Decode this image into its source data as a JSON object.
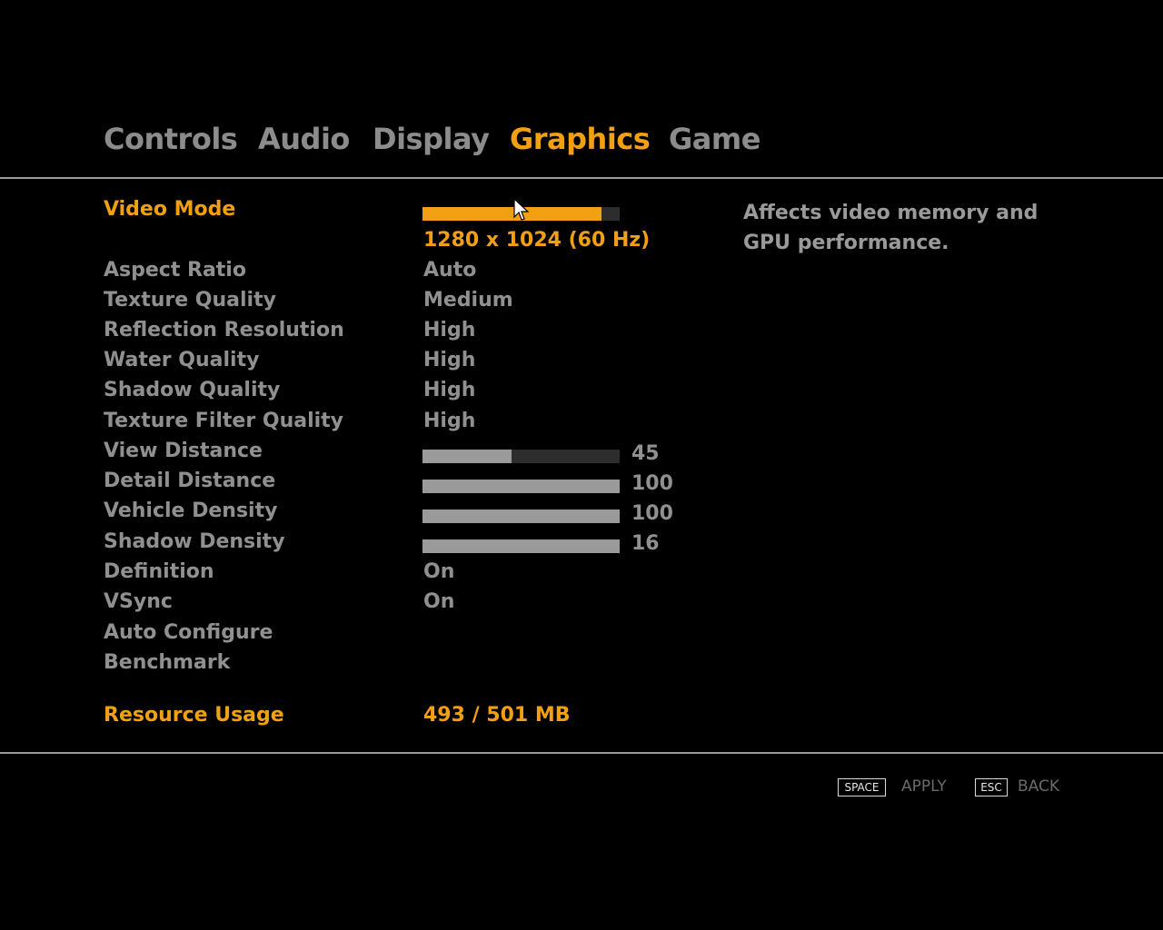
{
  "tabs": [
    {
      "label": "Controls",
      "active": false
    },
    {
      "label": "Audio",
      "active": false
    },
    {
      "label": "Display",
      "active": false
    },
    {
      "label": "Graphics",
      "active": true
    },
    {
      "label": "Game",
      "active": false
    }
  ],
  "settings": {
    "video_mode": {
      "label": "Video Mode",
      "value": "1280 x 1024 (60 Hz)",
      "slider_fraction": 0.91
    },
    "aspect_ratio": {
      "label": "Aspect Ratio",
      "value": "Auto"
    },
    "texture_quality": {
      "label": "Texture Quality",
      "value": "Medium"
    },
    "reflection_resolution": {
      "label": "Reflection Resolution",
      "value": "High"
    },
    "water_quality": {
      "label": "Water Quality",
      "value": "High"
    },
    "shadow_quality": {
      "label": "Shadow Quality",
      "value": "High"
    },
    "texture_filter_quality": {
      "label": "Texture Filter Quality",
      "value": "High"
    },
    "view_distance": {
      "label": "View Distance",
      "value": "45",
      "fill_fraction": 0.45
    },
    "detail_distance": {
      "label": "Detail Distance",
      "value": "100",
      "fill_fraction": 1.0
    },
    "vehicle_density": {
      "label": "Vehicle Density",
      "value": "100",
      "fill_fraction": 1.0
    },
    "shadow_density": {
      "label": "Shadow Density",
      "value": "16",
      "fill_fraction": 1.0
    },
    "definition": {
      "label": "Definition",
      "value": "On"
    },
    "vsync": {
      "label": "VSync",
      "value": "On"
    },
    "auto_configure": {
      "label": "Auto Configure"
    },
    "benchmark": {
      "label": "Benchmark"
    }
  },
  "resource_usage": {
    "label": "Resource Usage",
    "value": "493 / 501 MB"
  },
  "description": "Affects video memory and GPU performance.",
  "footer": {
    "apply_key": "SPACE",
    "apply_label": "APPLY",
    "back_key": "ESC",
    "back_label": "BACK"
  },
  "colors": {
    "accent": "#f0a010",
    "text": "#909090",
    "background": "#000000"
  },
  "icons": {
    "cursor": "mouse-pointer-icon"
  }
}
